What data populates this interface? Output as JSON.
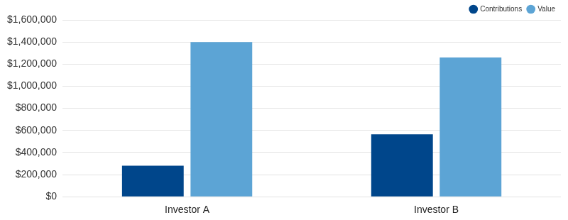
{
  "chart_data": {
    "type": "bar",
    "categories": [
      "Investor A",
      "Investor B"
    ],
    "series": [
      {
        "name": "Contributions",
        "color": "#00468b",
        "values": [
          280000,
          565000
        ]
      },
      {
        "name": "Value",
        "color": "#5ca4d5",
        "values": [
          1400000,
          1260000
        ]
      }
    ],
    "ylim": [
      0,
      1600000
    ],
    "yticks": [
      {
        "value": 0,
        "label": "$0"
      },
      {
        "value": 200000,
        "label": "$200,000"
      },
      {
        "value": 400000,
        "label": "$400,000"
      },
      {
        "value": 600000,
        "label": "$600,000"
      },
      {
        "value": 800000,
        "label": "$800,000"
      },
      {
        "value": 1000000,
        "label": "$1,000,000"
      },
      {
        "value": 1200000,
        "label": "$1,200,000"
      },
      {
        "value": 1400000,
        "label": "$1,400,000"
      },
      {
        "value": 1600000,
        "label": "$1,600,000"
      }
    ],
    "grid": true,
    "legend": "top-right"
  }
}
